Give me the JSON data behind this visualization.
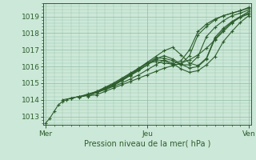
{
  "title": "",
  "xlabel": "Pression niveau de la mer( hPa )",
  "bg_color": "#cce8d8",
  "grid_color": "#99c4aa",
  "line_color": "#2d5e2d",
  "x_ticks": [
    0,
    48,
    96
  ],
  "x_tick_labels": [
    "Mer",
    "Jeu",
    "Ven"
  ],
  "ylim": [
    1012.5,
    1019.8
  ],
  "xlim": [
    -1,
    97
  ],
  "yticks": [
    1013,
    1014,
    1015,
    1016,
    1017,
    1018,
    1019
  ],
  "series": [
    {
      "x": [
        0,
        2,
        4,
        6,
        8,
        10,
        12,
        16,
        20,
        24,
        28,
        32,
        36,
        40,
        44,
        48,
        52,
        56,
        60,
        64,
        68,
        72,
        76,
        80,
        84,
        88,
        92,
        96
      ],
      "y": [
        1012.6,
        1012.9,
        1013.3,
        1013.7,
        1013.9,
        1014.0,
        1014.1,
        1014.2,
        1014.25,
        1014.3,
        1014.5,
        1014.7,
        1014.9,
        1015.1,
        1015.3,
        1015.5,
        1015.7,
        1015.9,
        1016.05,
        1016.2,
        1016.4,
        1016.7,
        1017.1,
        1017.6,
        1018.1,
        1018.6,
        1019.0,
        1019.3
      ]
    },
    {
      "x": [
        8,
        12,
        16,
        20,
        24,
        28,
        32,
        36,
        40,
        44,
        48,
        52,
        56,
        60,
        64,
        68,
        72,
        76,
        80,
        84,
        88,
        92,
        96
      ],
      "y": [
        1014.0,
        1014.1,
        1014.2,
        1014.3,
        1014.45,
        1014.6,
        1014.8,
        1015.0,
        1015.25,
        1015.5,
        1015.8,
        1016.1,
        1016.4,
        1016.2,
        1015.85,
        1015.65,
        1015.75,
        1016.1,
        1016.6,
        1017.5,
        1018.1,
        1018.65,
        1019.05
      ]
    },
    {
      "x": [
        12,
        16,
        20,
        24,
        28,
        32,
        36,
        40,
        44,
        48,
        52,
        56,
        60,
        64,
        68,
        72,
        76,
        80,
        84,
        88,
        92,
        96
      ],
      "y": [
        1014.1,
        1014.2,
        1014.35,
        1014.5,
        1014.7,
        1014.9,
        1015.15,
        1015.45,
        1015.75,
        1016.1,
        1016.45,
        1016.65,
        1016.45,
        1016.15,
        1015.9,
        1016.0,
        1016.45,
        1017.65,
        1018.2,
        1018.65,
        1018.95,
        1019.15
      ]
    },
    {
      "x": [
        16,
        20,
        24,
        28,
        32,
        36,
        40,
        44,
        48,
        52,
        56,
        60,
        64,
        68,
        72,
        76,
        80,
        84,
        88,
        92,
        96
      ],
      "y": [
        1014.15,
        1014.3,
        1014.5,
        1014.75,
        1015.0,
        1015.3,
        1015.6,
        1015.9,
        1016.25,
        1016.6,
        1016.95,
        1017.15,
        1016.7,
        1016.2,
        1016.05,
        1016.5,
        1017.75,
        1018.3,
        1018.7,
        1019.0,
        1019.2
      ]
    },
    {
      "x": [
        20,
        24,
        28,
        32,
        36,
        40,
        44,
        48,
        52,
        56,
        60,
        64,
        68,
        72,
        76,
        80,
        84,
        88,
        92,
        96
      ],
      "y": [
        1014.2,
        1014.45,
        1014.7,
        1014.95,
        1015.25,
        1015.55,
        1015.9,
        1016.2,
        1016.5,
        1016.5,
        1016.35,
        1016.1,
        1016.1,
        1016.6,
        1017.8,
        1018.35,
        1018.75,
        1019.05,
        1019.2,
        1019.4
      ]
    },
    {
      "x": [
        24,
        28,
        32,
        36,
        40,
        44,
        48,
        52,
        56,
        60,
        64,
        68,
        72,
        76,
        80,
        84,
        88,
        92,
        96
      ],
      "y": [
        1014.4,
        1014.65,
        1014.9,
        1015.2,
        1015.5,
        1015.8,
        1016.1,
        1016.4,
        1016.35,
        1016.1,
        1016.15,
        1016.65,
        1017.9,
        1018.4,
        1018.8,
        1019.05,
        1019.2,
        1019.35,
        1019.5
      ]
    },
    {
      "x": [
        28,
        32,
        36,
        40,
        44,
        48,
        52,
        56,
        60,
        64,
        68,
        72,
        76,
        80,
        84,
        88,
        92,
        96
      ],
      "y": [
        1014.6,
        1014.85,
        1015.15,
        1015.5,
        1015.85,
        1016.2,
        1016.3,
        1016.2,
        1016.15,
        1016.35,
        1017.0,
        1018.1,
        1018.55,
        1018.85,
        1019.05,
        1019.2,
        1019.35,
        1019.55
      ]
    }
  ]
}
